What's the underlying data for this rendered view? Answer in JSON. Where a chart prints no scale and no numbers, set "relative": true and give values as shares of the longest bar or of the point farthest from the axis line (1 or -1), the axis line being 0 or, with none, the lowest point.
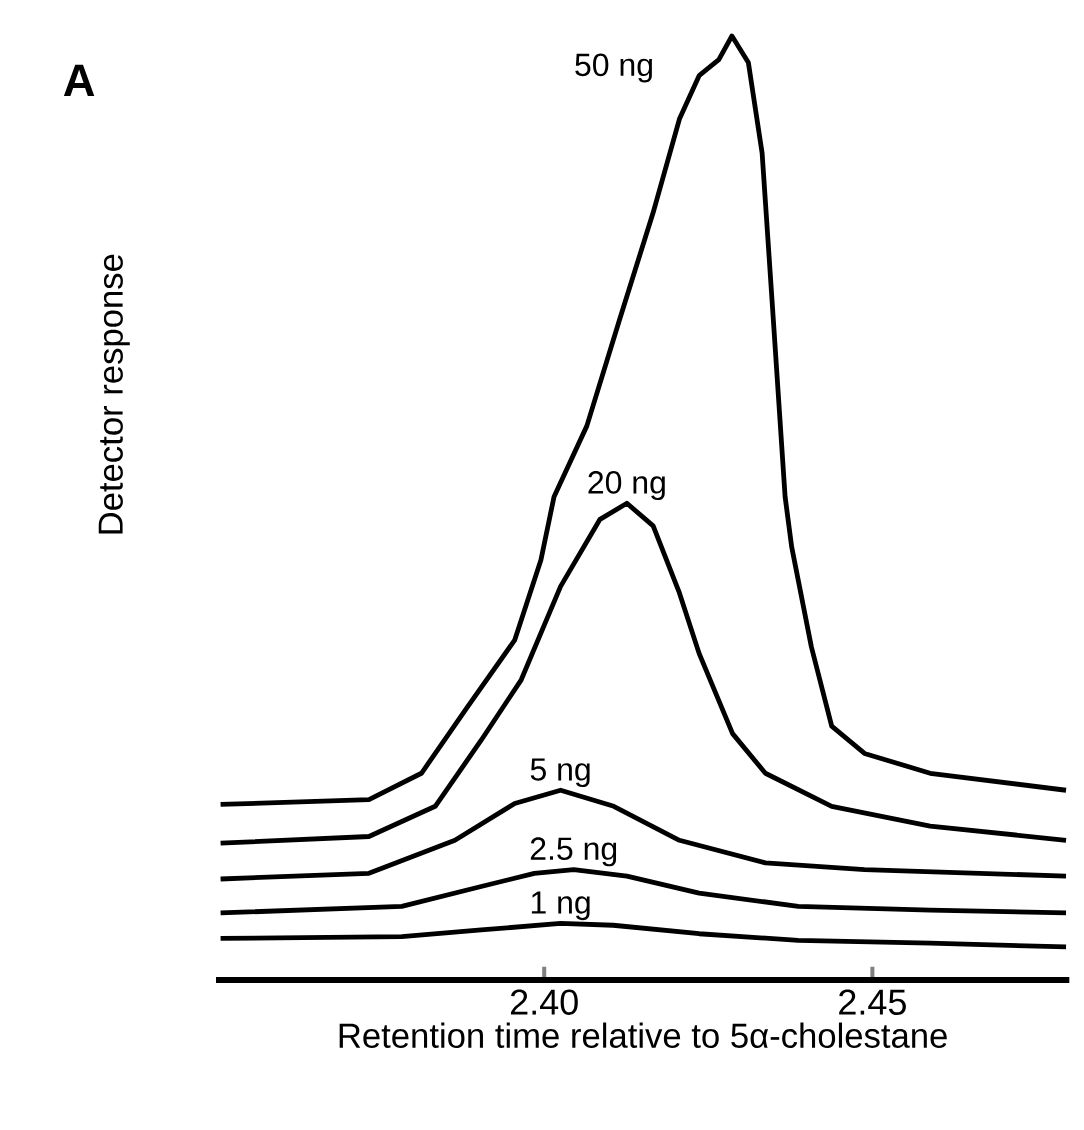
{
  "chart_data": {
    "type": "line",
    "relative": true,
    "xlabel": "Retention time relative to 5α-cholestane",
    "ylabel": "Detector response",
    "annotations": [
      "A"
    ],
    "xlim": [
      2.35,
      2.48
    ],
    "xticks": [
      {
        "value": 2.4,
        "label": "2.40"
      },
      {
        "value": 2.45,
        "label": "2.45"
      }
    ],
    "tick_labels": "x",
    "series": [
      {
        "name": "1 ng",
        "color": "#000000",
        "x": [
          2.3507,
          2.3783,
          2.3904,
          2.4025,
          2.4105,
          2.4236,
          2.4387,
          2.4588,
          2.4795
        ],
        "values": [
          0.044,
          0.046,
          0.053,
          0.06,
          0.058,
          0.049,
          0.042,
          0.039,
          0.035
        ]
      },
      {
        "name": "2.5 ng",
        "color": "#000000",
        "x": [
          2.3507,
          2.3783,
          2.3904,
          2.3985,
          2.4045,
          2.4126,
          2.4236,
          2.4387,
          2.4588,
          2.4795
        ],
        "values": [
          0.071,
          0.078,
          0.099,
          0.113,
          0.117,
          0.11,
          0.092,
          0.078,
          0.074,
          0.071
        ]
      },
      {
        "name": "5 ng",
        "color": "#000000",
        "x": [
          2.3507,
          2.3733,
          2.3864,
          2.3955,
          2.4025,
          2.4106,
          2.4206,
          2.4337,
          2.4488,
          2.4795
        ],
        "values": [
          0.107,
          0.113,
          0.148,
          0.187,
          0.201,
          0.184,
          0.148,
          0.124,
          0.117,
          0.11
        ]
      },
      {
        "name": "20 ng",
        "color": "#000000",
        "x": [
          2.3507,
          2.3733,
          2.3834,
          2.3904,
          2.3965,
          2.4025,
          2.4085,
          2.4126,
          2.4166,
          2.4206,
          2.4236,
          2.4287,
          2.4337,
          2.4438,
          2.4588,
          2.4795
        ],
        "values": [
          0.145,
          0.152,
          0.184,
          0.254,
          0.318,
          0.417,
          0.488,
          0.505,
          0.481,
          0.41,
          0.346,
          0.261,
          0.219,
          0.184,
          0.163,
          0.148
        ]
      },
      {
        "name": "50 ng",
        "color": "#000000",
        "x": [
          2.3507,
          2.3733,
          2.3813,
          2.3884,
          2.3955,
          2.3995,
          2.4015,
          2.4065,
          2.4115,
          2.4166,
          2.4206,
          2.4236,
          2.4266,
          2.4286,
          2.4311,
          2.4332,
          2.4347,
          2.4367,
          2.4377,
          2.4407,
          2.4438,
          2.4488,
          2.4588,
          2.4795
        ],
        "values": [
          0.186,
          0.191,
          0.219,
          0.29,
          0.36,
          0.445,
          0.512,
          0.587,
          0.7,
          0.813,
          0.912,
          0.958,
          0.975,
          1,
          0.972,
          0.876,
          0.721,
          0.512,
          0.459,
          0.353,
          0.269,
          0.24,
          0.219,
          0.201
        ]
      }
    ]
  }
}
